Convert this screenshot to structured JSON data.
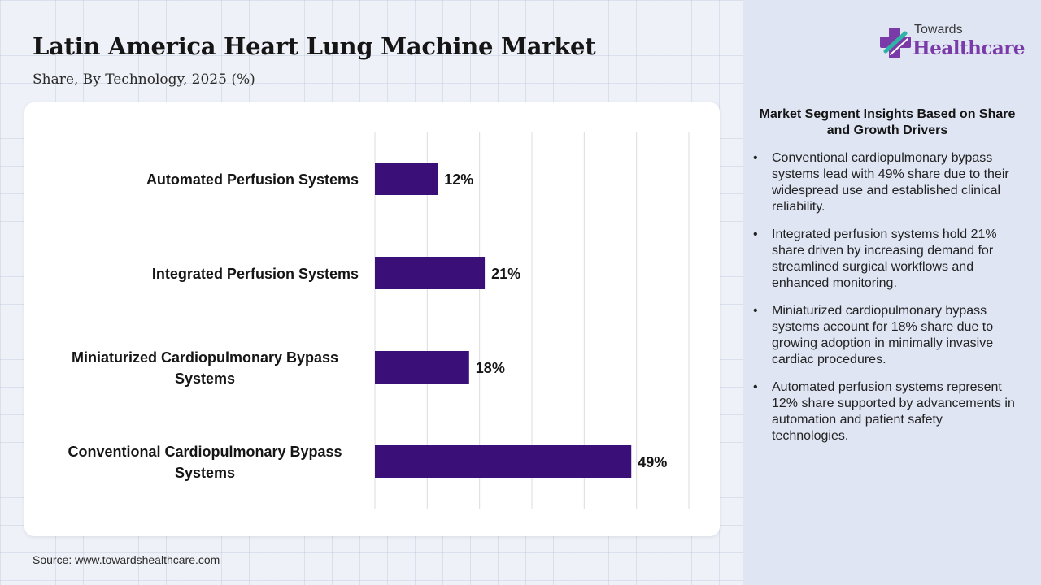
{
  "header": {
    "title": "Latin America Heart Lung Machine Market",
    "subtitle": "Share, By Technology, 2025 (%)"
  },
  "brand": {
    "top": "Towards",
    "main": "Healthcare",
    "colors": {
      "primary": "#7a3aa8",
      "accent": "#2fb3a6"
    }
  },
  "chart_data": {
    "type": "bar",
    "orientation": "horizontal",
    "categories": [
      "Automated Perfusion Systems",
      "Integrated Perfusion Systems",
      "Miniaturized Cardiopulmonary Bypass Systems",
      "Conventional Cardiopulmonary Bypass Systems"
    ],
    "values": [
      12,
      21,
      18,
      49
    ],
    "value_labels": [
      "12%",
      "21%",
      "18%",
      "49%"
    ],
    "xlim": [
      0,
      60
    ],
    "grid": "vertical",
    "bar_color": "#3b0f78"
  },
  "insights": {
    "heading": "Market Segment Insights Based on Share and Growth Drivers",
    "items": [
      "Conventional cardiopulmonary bypass systems lead with 49% share due to their widespread use and established clinical reliability.",
      "Integrated perfusion systems hold 21% share driven by increasing demand for streamlined surgical workflows and enhanced monitoring.",
      "Miniaturized cardiopulmonary bypass systems account for 18% share due to growing adoption in minimally invasive cardiac procedures.",
      "Automated perfusion systems represent 12% share supported by advancements in automation and patient safety technologies."
    ]
  },
  "source": "Source: www.towardshealthcare.com"
}
